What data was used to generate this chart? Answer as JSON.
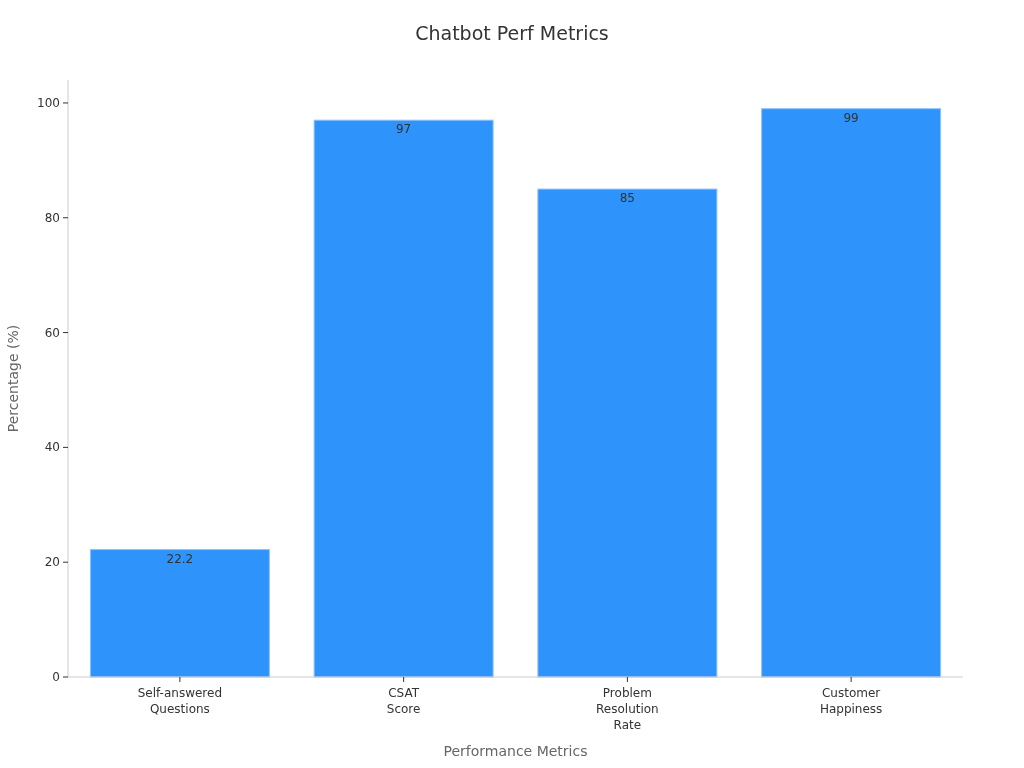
{
  "chart_data": {
    "type": "bar",
    "title": "Chatbot Perf Metrics",
    "xlabel": "Performance Metrics",
    "ylabel": "Percentage (%)",
    "categories": [
      "Self-answered Questions",
      "CSAT Score",
      "Problem Resolution Rate",
      "Customer Happiness"
    ],
    "values": [
      22.2,
      97,
      85,
      99
    ],
    "color": "#2e93fa",
    "ylim": [
      0,
      104
    ],
    "yticks": [
      0,
      20,
      40,
      60,
      80,
      100
    ],
    "grid": false,
    "data_labels": true
  }
}
